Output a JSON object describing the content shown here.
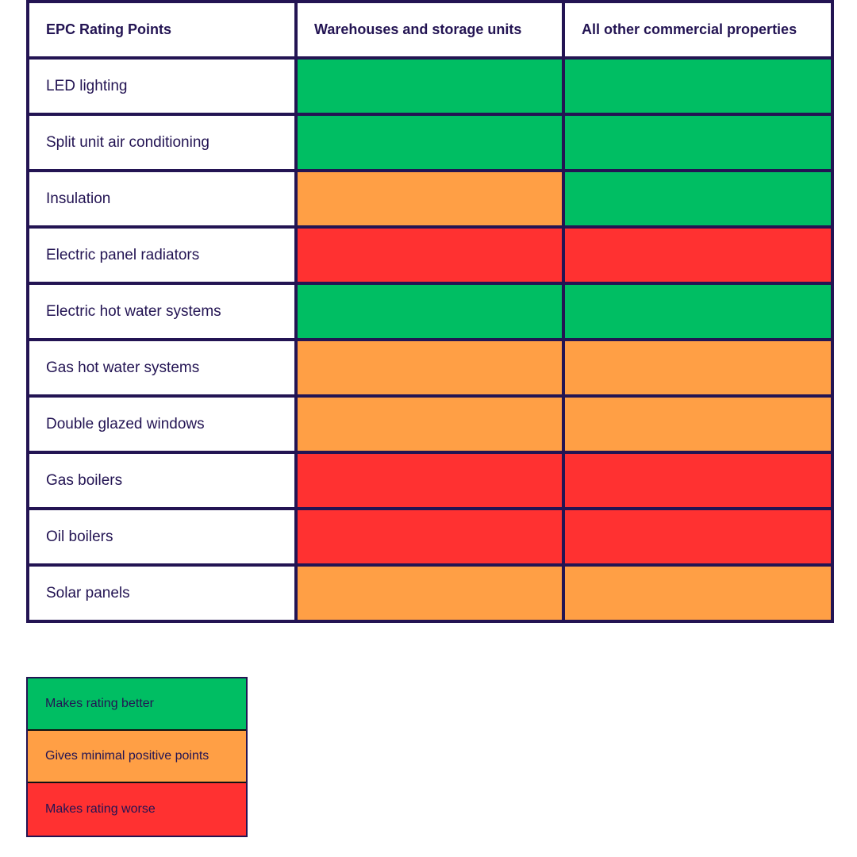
{
  "colors": {
    "better": "#00BE63",
    "minimal": "#FF9F45",
    "worse": "#FF3131",
    "border": "#231453"
  },
  "table": {
    "headers": [
      "EPC Rating Points",
      "Warehouses and storage units",
      "All other commercial properties"
    ],
    "rows": [
      {
        "label": "LED lighting",
        "warehouses": "better",
        "other": "better"
      },
      {
        "label": "Split unit air conditioning",
        "warehouses": "better",
        "other": "better"
      },
      {
        "label": "Insulation",
        "warehouses": "minimal",
        "other": "better"
      },
      {
        "label": "Electric panel radiators",
        "warehouses": "worse",
        "other": "worse"
      },
      {
        "label": "Electric hot water systems",
        "warehouses": "better",
        "other": "better"
      },
      {
        "label": "Gas hot water systems",
        "warehouses": "minimal",
        "other": "minimal"
      },
      {
        "label": "Double glazed windows",
        "warehouses": "minimal",
        "other": "minimal"
      },
      {
        "label": "Gas boilers",
        "warehouses": "worse",
        "other": "worse"
      },
      {
        "label": "Oil boilers",
        "warehouses": "worse",
        "other": "worse"
      },
      {
        "label": "Solar panels",
        "warehouses": "minimal",
        "other": "minimal"
      }
    ]
  },
  "legend": [
    {
      "key": "better",
      "label": "Makes rating better"
    },
    {
      "key": "minimal",
      "label": "Gives minimal positive points"
    },
    {
      "key": "worse",
      "label": "Makes rating worse"
    }
  ]
}
